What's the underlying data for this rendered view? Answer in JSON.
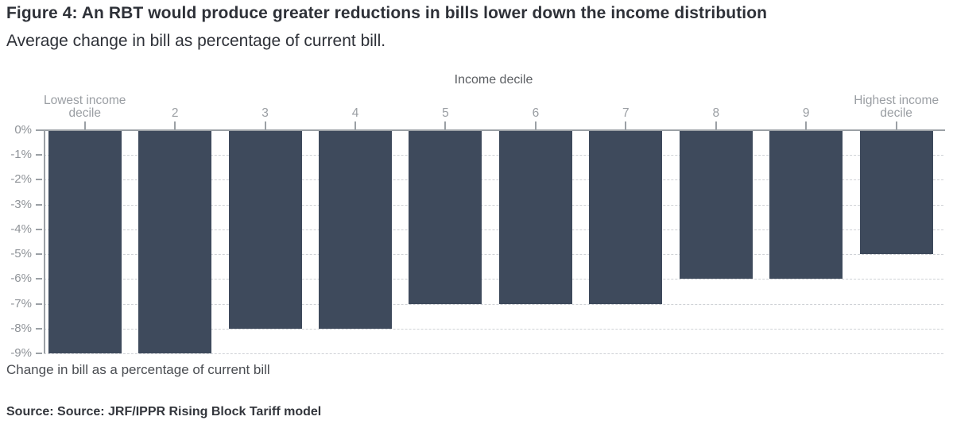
{
  "header": {
    "title": "Figure 4: An RBT would produce greater reductions in bills lower down the income distribution",
    "subtitle": "Average change in bill as percentage of current bill."
  },
  "chart_data": {
    "type": "bar",
    "xlabel": "Income decile",
    "ylabel": "Change in bill as a percentage of current bill",
    "categories": [
      "Lowest income decile",
      "2",
      "3",
      "4",
      "5",
      "6",
      "7",
      "8",
      "9",
      "Highest income decile"
    ],
    "values": [
      -9,
      -9,
      -8,
      -8,
      -7,
      -7,
      -7,
      -6,
      -6,
      -5
    ],
    "unit": "%",
    "ylim": [
      -9,
      0
    ],
    "ytick_labels": [
      "0%",
      "-1%",
      "-2%",
      "-3%",
      "-4%",
      "-5%",
      "-6%",
      "-7%",
      "-8%",
      "-9%"
    ],
    "grid": "horizontal-dashed",
    "legend": "none",
    "bar_color": "#3e4a5c"
  },
  "footer": {
    "caption": "Change in bill as a percentage of current bill",
    "source": "Source: Source: JRF/IPPR Rising Block Tariff model"
  },
  "colors": {
    "bar": "#3e4a5c",
    "axis": "#9ba0a5",
    "gridline": "#cfd2d6",
    "tick_label": "#8f9398",
    "text_dark": "#2e3138"
  }
}
